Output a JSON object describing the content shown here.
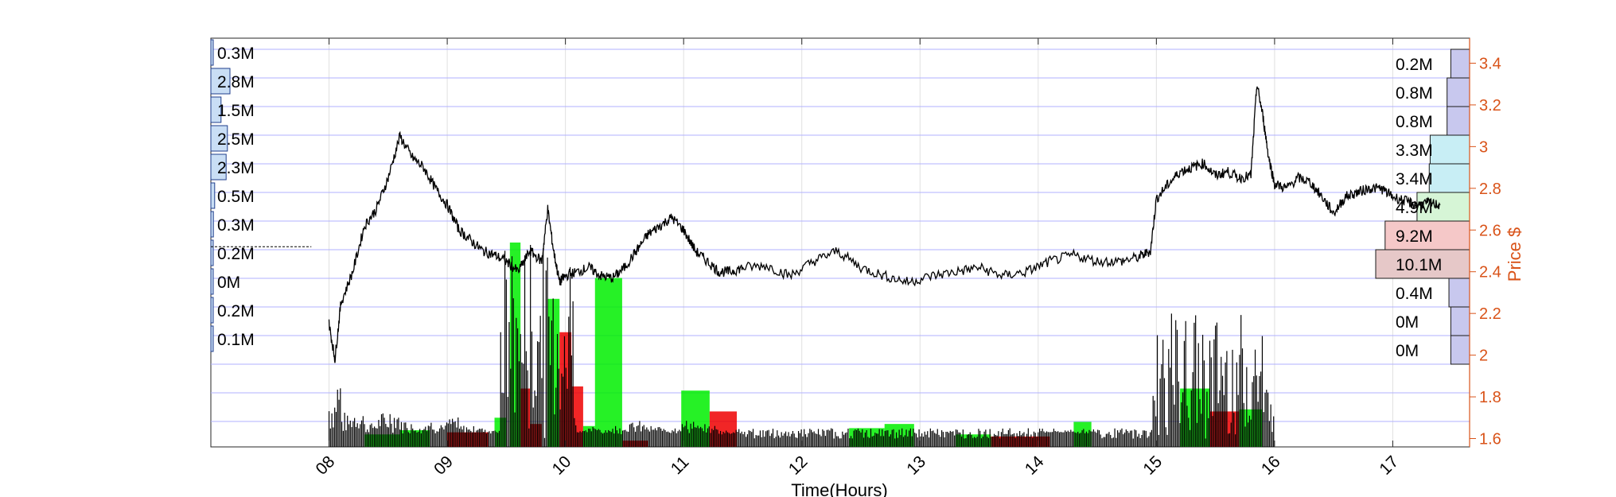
{
  "chart_data": {
    "type": "line",
    "title": "",
    "xlabel": "Time(Hours)",
    "ylabel": "Price $",
    "xlim": [
      7.0,
      17.65
    ],
    "ylim": [
      1.56,
      3.52
    ],
    "x_ticks": [
      8,
      9,
      10,
      11,
      12,
      13,
      14,
      15,
      16,
      17
    ],
    "x_tick_labels": [
      "08",
      "09",
      "10",
      "11",
      "12",
      "13",
      "14",
      "15",
      "16",
      "17"
    ],
    "y_ticks": [
      1.6,
      1.8,
      2,
      2.2,
      2.4,
      2.6,
      2.8,
      3,
      3.2,
      3.4
    ],
    "y_tick_labels": [
      "1.6",
      "1.8",
      "2",
      "2.2",
      "2.4",
      "2.6",
      "2.8",
      "3",
      "3.2",
      "3.4"
    ],
    "grid": true,
    "colors": {
      "price_axis": "#d95319",
      "price_line": "#000000",
      "up_volume": "#00ee00",
      "down_volume": "#ee0000",
      "left_profile": "#c9def5",
      "grid": "#b0b0ff"
    },
    "series": [
      {
        "type": "line",
        "x": [
          8.0,
          8.05,
          8.1,
          8.2,
          8.3,
          8.4,
          8.5,
          8.6,
          8.7,
          8.8,
          8.9,
          9.0,
          9.1,
          9.2,
          9.3,
          9.4,
          9.5,
          9.6,
          9.7,
          9.8,
          9.85,
          9.9,
          9.95,
          10.0,
          10.1,
          10.2,
          10.3,
          10.4,
          10.5,
          10.6,
          10.7,
          10.8,
          10.9,
          11.0,
          11.1,
          11.2,
          11.3,
          11.4,
          11.5,
          11.7,
          11.9,
          12.1,
          12.3,
          12.5,
          12.7,
          12.9,
          13.1,
          13.3,
          13.5,
          13.7,
          13.9,
          14.1,
          14.3,
          14.5,
          14.7,
          14.85,
          14.95,
          15.0,
          15.1,
          15.2,
          15.3,
          15.4,
          15.5,
          15.6,
          15.7,
          15.8,
          15.85,
          15.9,
          15.95,
          16.0,
          16.1,
          16.2,
          16.3,
          16.4,
          16.5,
          16.6,
          16.7,
          16.8,
          16.9,
          17.0,
          17.1,
          17.2,
          17.3,
          17.4
        ],
        "y": [
          2.15,
          1.98,
          2.25,
          2.4,
          2.62,
          2.7,
          2.85,
          3.05,
          2.95,
          2.9,
          2.8,
          2.72,
          2.6,
          2.55,
          2.5,
          2.48,
          2.45,
          2.4,
          2.5,
          2.45,
          2.7,
          2.5,
          2.35,
          2.38,
          2.4,
          2.42,
          2.38,
          2.37,
          2.42,
          2.5,
          2.58,
          2.62,
          2.66,
          2.6,
          2.5,
          2.45,
          2.4,
          2.4,
          2.42,
          2.43,
          2.38,
          2.45,
          2.5,
          2.42,
          2.38,
          2.35,
          2.38,
          2.4,
          2.42,
          2.38,
          2.4,
          2.45,
          2.48,
          2.45,
          2.45,
          2.47,
          2.5,
          2.75,
          2.82,
          2.88,
          2.9,
          2.92,
          2.86,
          2.88,
          2.85,
          2.86,
          3.3,
          3.15,
          2.95,
          2.82,
          2.8,
          2.85,
          2.83,
          2.76,
          2.68,
          2.76,
          2.78,
          2.8,
          2.8,
          2.76,
          2.74,
          2.72,
          2.73,
          2.72
        ]
      },
      {
        "type": "volume_blocks",
        "blocks": [
          {
            "x0": 8.3,
            "x1": 8.6,
            "height": 1.62,
            "dir": "up"
          },
          {
            "x0": 8.6,
            "x1": 8.85,
            "height": 1.64,
            "dir": "up"
          },
          {
            "x0": 9.0,
            "x1": 9.35,
            "height": 1.63,
            "dir": "down"
          },
          {
            "x0": 9.4,
            "x1": 9.5,
            "height": 1.7,
            "dir": "up"
          },
          {
            "x0": 9.53,
            "x1": 9.62,
            "height": 2.54,
            "dir": "up"
          },
          {
            "x0": 9.62,
            "x1": 9.7,
            "height": 1.84,
            "dir": "down"
          },
          {
            "x0": 9.7,
            "x1": 9.8,
            "height": 1.67,
            "dir": "down"
          },
          {
            "x0": 9.85,
            "x1": 9.95,
            "height": 2.27,
            "dir": "up"
          },
          {
            "x0": 9.95,
            "x1": 10.05,
            "height": 2.11,
            "dir": "down"
          },
          {
            "x0": 10.05,
            "x1": 10.15,
            "height": 1.85,
            "dir": "down"
          },
          {
            "x0": 10.15,
            "x1": 10.25,
            "height": 1.66,
            "dir": "up"
          },
          {
            "x0": 10.25,
            "x1": 10.48,
            "height": 2.37,
            "dir": "up"
          },
          {
            "x0": 10.48,
            "x1": 10.7,
            "height": 1.59,
            "dir": "down"
          },
          {
            "x0": 10.98,
            "x1": 11.22,
            "height": 1.83,
            "dir": "up"
          },
          {
            "x0": 11.22,
            "x1": 11.45,
            "height": 1.73,
            "dir": "down"
          },
          {
            "x0": 12.4,
            "x1": 12.7,
            "height": 1.65,
            "dir": "up"
          },
          {
            "x0": 12.7,
            "x1": 12.95,
            "height": 1.67,
            "dir": "up"
          },
          {
            "x0": 13.3,
            "x1": 13.6,
            "height": 1.62,
            "dir": "up"
          },
          {
            "x0": 13.6,
            "x1": 14.1,
            "height": 1.61,
            "dir": "down"
          },
          {
            "x0": 14.3,
            "x1": 14.45,
            "height": 1.68,
            "dir": "up"
          },
          {
            "x0": 15.2,
            "x1": 15.45,
            "height": 1.84,
            "dir": "up"
          },
          {
            "x0": 15.45,
            "x1": 15.7,
            "height": 1.73,
            "dir": "down"
          },
          {
            "x0": 15.7,
            "x1": 15.9,
            "height": 1.74,
            "dir": "up"
          }
        ]
      },
      {
        "type": "left_volume_profile",
        "labels": [
          "0.3M",
          "2.8M",
          "1.5M",
          "2.5M",
          "2.3M",
          "0.5M",
          "0.3M",
          "0.2M",
          "0M",
          "0.2M",
          "0.1M"
        ],
        "fraction": [
          0.01,
          0.15,
          0.08,
          0.13,
          0.12,
          0.03,
          0.02,
          0.01,
          0.0,
          0.01,
          0.01
        ],
        "dashed_level": 2.52
      },
      {
        "type": "right_volume_profile",
        "labels": [
          "0.2M",
          "0.8M",
          "0.8M",
          "3.3M",
          "3.4M",
          "4.9M",
          "9.2M",
          "10.1M",
          "0.4M",
          "0M",
          "0M"
        ],
        "fraction": [
          0.2,
          0.24,
          0.24,
          0.42,
          0.43,
          0.56,
          0.9,
          1.0,
          0.22,
          0.2,
          0.2
        ],
        "colors": [
          "#c8c8ee",
          "#c8c8ee",
          "#c8c8ee",
          "#c8eef5",
          "#c8eef5",
          "#d6f5d6",
          "#f5c8c8",
          "#e6c8c8",
          "#c8c8ee",
          "#c8c8ee",
          "#c8c8ee"
        ]
      }
    ]
  }
}
